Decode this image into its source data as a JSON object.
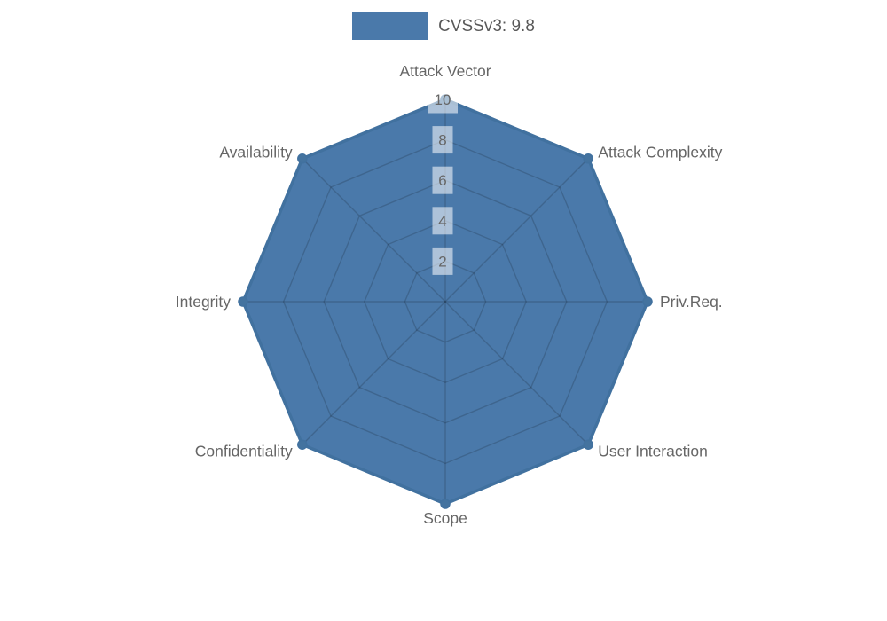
{
  "legend": {
    "label": "CVSSv3: 9.8"
  },
  "colors": {
    "series_fill": "#4a79aa",
    "series_stroke": "#41719f",
    "marker_fill": "#44739f",
    "grid_line": "rgba(0,0,0,0.16)",
    "tick_backdrop": "rgba(255,255,255,0.55)",
    "tick_text": "#666666",
    "label_text": "#666666",
    "legend_text": "#595959",
    "background": "#ffffff"
  },
  "chart_data": {
    "type": "radar",
    "title": "",
    "categories": [
      "Attack Vector",
      "Attack Complexity",
      "Priv.Req.",
      "User Interaction",
      "Scope",
      "Confidentiality",
      "Integrity",
      "Availability"
    ],
    "series": [
      {
        "name": "CVSSv3: 9.8",
        "values": [
          10,
          10,
          10,
          10,
          10,
          10,
          10,
          10
        ]
      }
    ],
    "ticks": [
      2,
      4,
      6,
      8,
      10
    ],
    "rmin": 0,
    "rmax": 10,
    "grid": true,
    "legend_position": "top",
    "tick_axis_angle_deg": 90
  }
}
